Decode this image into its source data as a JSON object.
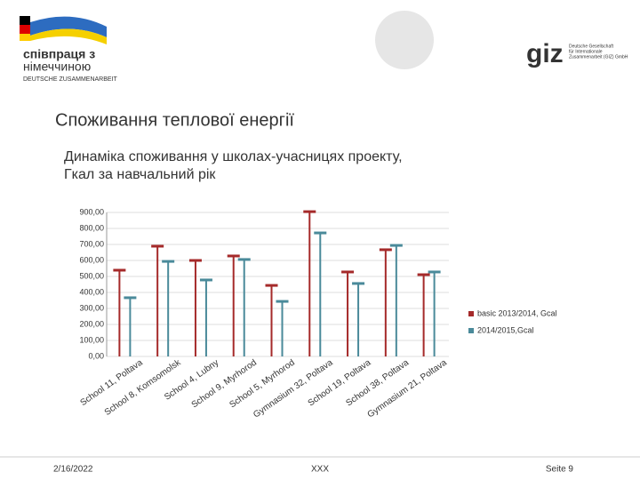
{
  "header": {
    "logo_text": "співпраця з",
    "logo_text2": "німеччиною",
    "logo_sub": "DEUTSCHE ZUSAMMENARBEIT",
    "giz": "giz",
    "giz_sub1": "Deutsche Gesellschaft",
    "giz_sub2": "für Internationale",
    "giz_sub3": "Zusammenarbeit (GIZ) GmbH"
  },
  "slide_title": "Споживання теплової енергії",
  "chart_data": {
    "type": "bar",
    "title": [
      "Динаміка споживання у школах-учасницях проекту,",
      "Гкал за навчальний рік"
    ],
    "categories": [
      "School 11, Poltava",
      "School 8, Komsomolsk",
      "School 4, Lubny",
      "School 9, Myrhorod",
      "School 5, Myrhorod",
      "Gymnasium 32, Poltava",
      "School 19, Poltava",
      "School 38, Poltava",
      "Gymnasium 21, Poltava"
    ],
    "series": [
      {
        "name": "basic 2013/2014, Gcal",
        "color": "#a52a2a",
        "values": [
          539,
          689,
          600,
          628,
          444,
          905,
          528,
          667,
          511
        ]
      },
      {
        "name": "2014/2015,Gcal",
        "color": "#4a8a9a",
        "values": [
          367,
          594,
          478,
          606,
          344,
          772,
          456,
          694,
          528
        ]
      }
    ],
    "ylim": [
      0,
      900
    ],
    "yticks": [
      {
        "value": 0,
        "label": "0,00"
      },
      {
        "value": 100,
        "label": "100,00"
      },
      {
        "value": 200,
        "label": "200,00"
      },
      {
        "value": 300,
        "label": "300,00"
      },
      {
        "value": 400,
        "label": "400,00"
      },
      {
        "value": 500,
        "label": "500,00"
      },
      {
        "value": 600,
        "label": "600,00"
      },
      {
        "value": 700,
        "label": "700,00"
      },
      {
        "value": 800,
        "label": "800,00"
      },
      {
        "value": 900,
        "label": "900,00"
      }
    ],
    "grid": true
  },
  "footer": {
    "date": "2/16/2022",
    "center": "XXX",
    "page": "Seite 9"
  }
}
